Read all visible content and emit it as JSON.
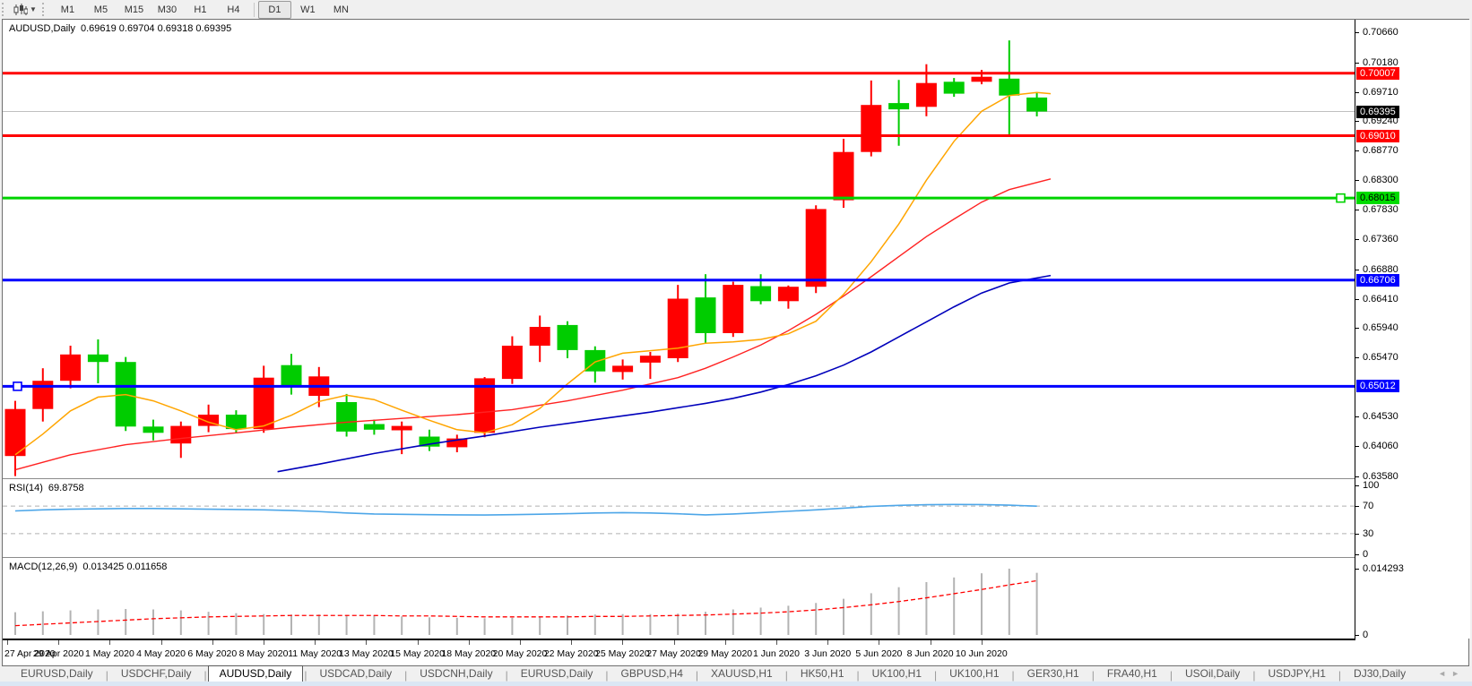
{
  "toolbar": {
    "chart_icon": "candlestick-chart-icon",
    "caret_icon": "chevron-down-icon",
    "timeframe_groups": [
      [
        "M1",
        "M5",
        "M15",
        "M30",
        "H1",
        "H4"
      ],
      [
        "D1",
        "W1",
        "MN"
      ]
    ],
    "active_timeframe": "D1"
  },
  "chart": {
    "title": "AUDUSD,Daily",
    "ohlc_text": "0.69619 0.69704 0.69318 0.69395"
  },
  "rsi_header": {
    "label": "RSI(14)",
    "value": "69.8758"
  },
  "macd_header": {
    "label": "MACD(12,26,9)",
    "value": "0.013425 0.011658"
  },
  "colors": {
    "bull": "#ff0000",
    "bear": "#00cc00",
    "ma_fast": "#ffa500",
    "ma_mid": "#ff2222",
    "ma_slow": "#0000bb",
    "line_red": "#ff0000",
    "line_green": "#00d300",
    "line_blue": "#0000ff",
    "rsi_line": "#4da6e8",
    "rsi_level": "#b0b0b0",
    "macd_hist": "#b3b3b3",
    "macd_signal": "#ff0000",
    "current_line": "#c0c0c0",
    "label_red_bg": "#ff0000",
    "label_green_bg": "#00dc00",
    "label_blue_bg": "#0000ff",
    "label_black_bg": "#000000"
  },
  "chart_data": {
    "type": "candlestick+indicators",
    "symbol": "AUDUSD",
    "period": "Daily",
    "current_bar": {
      "open": 0.69619,
      "high": 0.69704,
      "low": 0.69318,
      "close": 0.69395
    },
    "price_range": {
      "top": 0.7086,
      "bottom": 0.6356
    },
    "price_ticks": [
      "0.70660",
      "0.70180",
      "0.69710",
      "0.69240",
      "0.68770",
      "0.68300",
      "0.67830",
      "0.67360",
      "0.66880",
      "0.66410",
      "0.65940",
      "0.65470",
      "0.64530",
      "0.64060",
      "0.63580"
    ],
    "candles": [
      [
        0.639,
        0.6478,
        0.6358,
        0.6465
      ],
      [
        0.6465,
        0.653,
        0.6445,
        0.651
      ],
      [
        0.651,
        0.6566,
        0.6498,
        0.6552
      ],
      [
        0.6552,
        0.6576,
        0.6506,
        0.654
      ],
      [
        0.654,
        0.6548,
        0.643,
        0.6437
      ],
      [
        0.6437,
        0.6448,
        0.6415,
        0.6427
      ],
      [
        0.641,
        0.6445,
        0.6387,
        0.6438
      ],
      [
        0.6438,
        0.6472,
        0.6428,
        0.6456
      ],
      [
        0.6456,
        0.6463,
        0.6426,
        0.6433
      ],
      [
        0.6433,
        0.6534,
        0.6427,
        0.6515
      ],
      [
        0.6535,
        0.6553,
        0.6488,
        0.6502
      ],
      [
        0.6486,
        0.6532,
        0.6468,
        0.6517
      ],
      [
        0.6476,
        0.6489,
        0.6421,
        0.6429
      ],
      [
        0.6441,
        0.6448,
        0.6424,
        0.6432
      ],
      [
        0.6431,
        0.6445,
        0.6393,
        0.6438
      ],
      [
        0.6421,
        0.6432,
        0.6398,
        0.6405
      ],
      [
        0.6404,
        0.6424,
        0.6396,
        0.6418
      ],
      [
        0.6427,
        0.6516,
        0.642,
        0.6514
      ],
      [
        0.6513,
        0.6581,
        0.6505,
        0.6566
      ],
      [
        0.6566,
        0.6614,
        0.654,
        0.6596
      ],
      [
        0.6599,
        0.6605,
        0.6546,
        0.6559
      ],
      [
        0.6559,
        0.6565,
        0.6507,
        0.6525
      ],
      [
        0.6524,
        0.6544,
        0.6512,
        0.6534
      ],
      [
        0.6539,
        0.6556,
        0.6513,
        0.655
      ],
      [
        0.6546,
        0.6663,
        0.654,
        0.6641
      ],
      [
        0.6643,
        0.668,
        0.657,
        0.6586
      ],
      [
        0.6586,
        0.6668,
        0.658,
        0.6663
      ],
      [
        0.6661,
        0.668,
        0.6632,
        0.6637
      ],
      [
        0.6637,
        0.6662,
        0.6625,
        0.666
      ],
      [
        0.666,
        0.679,
        0.665,
        0.6784
      ],
      [
        0.6798,
        0.6896,
        0.6786,
        0.6875
      ],
      [
        0.6875,
        0.6989,
        0.6868,
        0.695
      ],
      [
        0.6953,
        0.699,
        0.6885,
        0.6943
      ],
      [
        0.6947,
        0.7015,
        0.6932,
        0.6985
      ],
      [
        0.6987,
        0.6993,
        0.6963,
        0.6968
      ],
      [
        0.6987,
        0.7006,
        0.6983,
        0.6995
      ],
      [
        0.6992,
        0.7053,
        0.69,
        0.6965
      ],
      [
        0.69619,
        0.69704,
        0.69318,
        0.69395
      ]
    ],
    "ma_fast": [
      [
        0,
        0.6392
      ],
      [
        1,
        0.6425
      ],
      [
        2,
        0.6462
      ],
      [
        3,
        0.6484
      ],
      [
        4,
        0.6488
      ],
      [
        5,
        0.6478
      ],
      [
        6,
        0.6462
      ],
      [
        7,
        0.6444
      ],
      [
        8,
        0.6432
      ],
      [
        9,
        0.6438
      ],
      [
        10,
        0.6455
      ],
      [
        11,
        0.6477
      ],
      [
        12,
        0.6487
      ],
      [
        13,
        0.648
      ],
      [
        14,
        0.6463
      ],
      [
        15,
        0.6447
      ],
      [
        16,
        0.6432
      ],
      [
        17,
        0.6427
      ],
      [
        18,
        0.644
      ],
      [
        19,
        0.6466
      ],
      [
        20,
        0.6505
      ],
      [
        21,
        0.654
      ],
      [
        22,
        0.6554
      ],
      [
        23,
        0.6558
      ],
      [
        24,
        0.6562
      ],
      [
        25,
        0.657
      ],
      [
        26,
        0.6572
      ],
      [
        27,
        0.6576
      ],
      [
        28,
        0.6585
      ],
      [
        29,
        0.6605
      ],
      [
        30,
        0.6648
      ],
      [
        31,
        0.67
      ],
      [
        32,
        0.676
      ],
      [
        33,
        0.683
      ],
      [
        34,
        0.6892
      ],
      [
        35,
        0.694
      ],
      [
        36,
        0.6965
      ],
      [
        37,
        0.697
      ],
      [
        37.5,
        0.6968
      ]
    ],
    "ma_mid": [
      [
        0,
        0.6368
      ],
      [
        2,
        0.6392
      ],
      [
        4,
        0.6408
      ],
      [
        6,
        0.6418
      ],
      [
        8,
        0.6427
      ],
      [
        10,
        0.6436
      ],
      [
        12,
        0.6444
      ],
      [
        14,
        0.645
      ],
      [
        16,
        0.6456
      ],
      [
        18,
        0.6464
      ],
      [
        20,
        0.6478
      ],
      [
        22,
        0.6495
      ],
      [
        24,
        0.6515
      ],
      [
        25,
        0.653
      ],
      [
        26,
        0.6548
      ],
      [
        27,
        0.6567
      ],
      [
        28,
        0.659
      ],
      [
        29,
        0.6616
      ],
      [
        30,
        0.6645
      ],
      [
        31,
        0.6676
      ],
      [
        32,
        0.6708
      ],
      [
        33,
        0.674
      ],
      [
        34,
        0.6768
      ],
      [
        35,
        0.6795
      ],
      [
        36,
        0.6815
      ],
      [
        37.5,
        0.6832
      ]
    ],
    "ma_slow": [
      [
        9.5,
        0.6365
      ],
      [
        11,
        0.6377
      ],
      [
        13,
        0.6394
      ],
      [
        15,
        0.6409
      ],
      [
        17,
        0.6422
      ],
      [
        19,
        0.6436
      ],
      [
        21,
        0.6448
      ],
      [
        23,
        0.646
      ],
      [
        25,
        0.6474
      ],
      [
        26,
        0.6482
      ],
      [
        27,
        0.6492
      ],
      [
        28,
        0.6504
      ],
      [
        29,
        0.6518
      ],
      [
        30,
        0.6535
      ],
      [
        31,
        0.6556
      ],
      [
        32,
        0.658
      ],
      [
        33,
        0.6604
      ],
      [
        34,
        0.6628
      ],
      [
        35,
        0.665
      ],
      [
        36,
        0.6666
      ],
      [
        37.5,
        0.6678
      ]
    ],
    "hlines": [
      {
        "name": "resistance-line-0.70007",
        "price": 0.70007,
        "label": "0.70007",
        "color_key": "line_red",
        "label_bg": "#ff0000",
        "label_fg": "#ffffff",
        "handle": "none"
      },
      {
        "name": "resistance-line-0.69010",
        "price": 0.6901,
        "label": "0.69010",
        "color_key": "line_red",
        "label_bg": "#ff0000",
        "label_fg": "#ffffff",
        "handle": "none"
      },
      {
        "name": "support-line-0.68015",
        "price": 0.68015,
        "label": "0.68015",
        "color_key": "line_green",
        "label_bg": "#00dc00",
        "label_fg": "#000000",
        "handle": "right"
      },
      {
        "name": "support-line-0.66706",
        "price": 0.66706,
        "label": "0.66706",
        "color_key": "line_blue",
        "label_bg": "#0000ff",
        "label_fg": "#ffffff",
        "handle": "none"
      },
      {
        "name": "support-line-0.65012",
        "price": 0.65012,
        "label": "0.65012",
        "color_key": "line_blue",
        "label_bg": "#0000ff",
        "label_fg": "#ffffff",
        "handle": "left"
      }
    ],
    "current_price": {
      "price": 0.69395,
      "label": "0.69395"
    },
    "date_labels": [
      "27 Apr 2020",
      "29 Apr 2020",
      "1 May 2020",
      "4 May 2020",
      "6 May 2020",
      "8 May 2020",
      "11 May 2020",
      "13 May 2020",
      "15 May 2020",
      "18 May 2020",
      "20 May 2020",
      "22 May 2020",
      "25 May 2020",
      "27 May 2020",
      "29 May 2020",
      "1 Jun 2020",
      "3 Jun 2020",
      "5 Jun 2020",
      "8 Jun 2020",
      "10 Jun 2020"
    ],
    "rsi": {
      "values": [
        63,
        64.5,
        65.5,
        66,
        66.5,
        66.5,
        66,
        65.5,
        65,
        64.5,
        63.5,
        62,
        60,
        58.5,
        58,
        57.5,
        57.2,
        57,
        57.5,
        58.2,
        59,
        60,
        60.5,
        60,
        58.8,
        57.2,
        58.5,
        60.5,
        62.5,
        64.5,
        67,
        69.5,
        71,
        72,
        72.3,
        72.2,
        71.3,
        69.88
      ],
      "levels": [
        70,
        30
      ],
      "axis_labels": [
        [
          100,
          "100"
        ],
        [
          70,
          "70"
        ],
        [
          30,
          "30"
        ],
        [
          0,
          "0"
        ]
      ],
      "range": [
        0,
        100
      ]
    },
    "macd": {
      "max": 0.014293,
      "histogram": [
        0.0049,
        0.0051,
        0.0053,
        0.0055,
        0.0056,
        0.0055,
        0.0053,
        0.005,
        0.0047,
        0.0045,
        0.0044,
        0.0044,
        0.0043,
        0.0042,
        0.004,
        0.0038,
        0.0037,
        0.0036,
        0.0037,
        0.0039,
        0.0042,
        0.0044,
        0.0045,
        0.0045,
        0.0046,
        0.005,
        0.0055,
        0.0059,
        0.0063,
        0.0069,
        0.0078,
        0.009,
        0.0103,
        0.0114,
        0.0124,
        0.0133,
        0.0143,
        0.0134
      ],
      "signal": [
        0.002,
        0.0023,
        0.0026,
        0.0029,
        0.0032,
        0.0035,
        0.0037,
        0.0039,
        0.004,
        0.0041,
        0.0042,
        0.0042,
        0.0042,
        0.0042,
        0.0041,
        0.0041,
        0.004,
        0.0039,
        0.0039,
        0.0039,
        0.0039,
        0.004,
        0.004,
        0.0041,
        0.0042,
        0.0043,
        0.0045,
        0.0047,
        0.005,
        0.0054,
        0.0059,
        0.0065,
        0.0072,
        0.008,
        0.0089,
        0.0098,
        0.0108,
        0.0117
      ],
      "axis_top_label": "0.014293",
      "axis_bottom_label": "0"
    }
  },
  "tabs": {
    "items": [
      {
        "label": "EURUSD,Daily"
      },
      {
        "label": "USDCHF,Daily"
      },
      {
        "label": "AUDUSD,Daily"
      },
      {
        "label": "USDCAD,Daily"
      },
      {
        "label": "USDCNH,Daily"
      },
      {
        "label": "EURUSD,Daily"
      },
      {
        "label": "GBPUSD,H4"
      },
      {
        "label": "XAUUSD,H1"
      },
      {
        "label": "HK50,H1"
      },
      {
        "label": "UK100,H1"
      },
      {
        "label": "UK100,H1"
      },
      {
        "label": "GER30,H1"
      },
      {
        "label": "FRA40,H1"
      },
      {
        "label": "USOil,Daily"
      },
      {
        "label": "USDJPY,H1"
      },
      {
        "label": "DJ30,Daily"
      }
    ],
    "active_index": 2,
    "scroll_left_icon": "◄",
    "scroll_right_icon": "►"
  }
}
